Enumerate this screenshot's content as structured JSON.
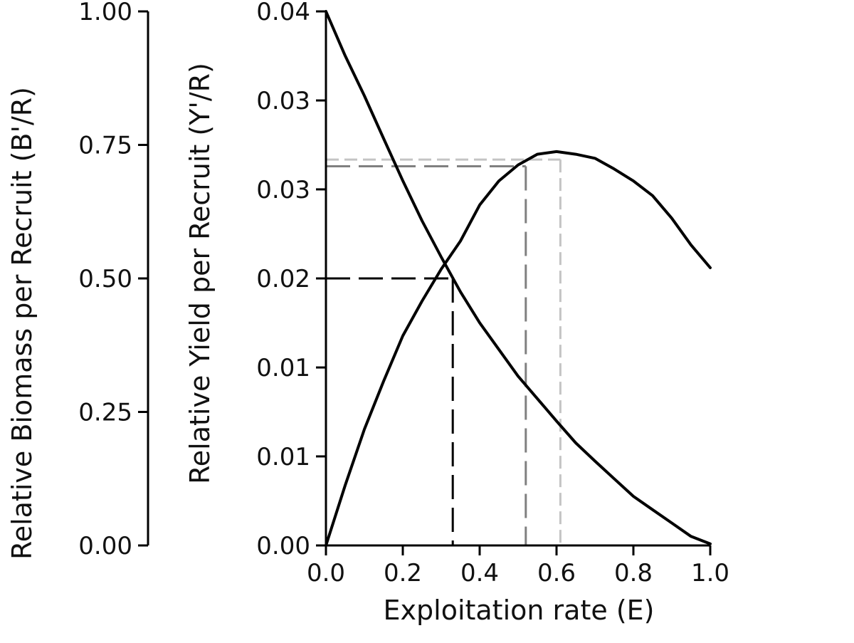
{
  "chart_data": {
    "type": "line",
    "xlabel": "Exploitation rate (E)",
    "ylabel_left": "Relative Biomass per Recruit (B'/R)",
    "ylabel_right": "Relative Yield per Recruit (Y'/R)",
    "x_ticks": [
      "0.0",
      "0.2",
      "0.4",
      "0.6",
      "0.8",
      "1.0"
    ],
    "x_tick_values": [
      0,
      0.2,
      0.4,
      0.6,
      0.8,
      1.0
    ],
    "left_ticks": [
      "0.00",
      "0.25",
      "0.50",
      "0.75",
      "1.00"
    ],
    "left_tick_values": [
      0,
      0.25,
      0.5,
      0.75,
      1.0
    ],
    "right_ticks": [
      "0.00",
      "0.01",
      "0.01",
      "0.02",
      "0.03",
      "0.03",
      "0.04"
    ],
    "right_tick_values": [
      0,
      0.00667,
      0.01333,
      0.02,
      0.02667,
      0.03333,
      0.04
    ],
    "xlim": [
      0,
      1
    ],
    "ylim_left": [
      0,
      1
    ],
    "ylim_right": [
      0,
      0.04
    ],
    "series": [
      {
        "axis": "left",
        "x": [
          0,
          0.05,
          0.1,
          0.15,
          0.2,
          0.25,
          0.3,
          0.35,
          0.4,
          0.45,
          0.5,
          0.55,
          0.6,
          0.65,
          0.7,
          0.75,
          0.8,
          0.85,
          0.9,
          0.95,
          1.0
        ],
        "y": [
          1.0,
          0.917,
          0.842,
          0.762,
          0.683,
          0.608,
          0.54,
          0.475,
          0.417,
          0.367,
          0.317,
          0.275,
          0.233,
          0.192,
          0.158,
          0.125,
          0.092,
          0.067,
          0.042,
          0.017,
          0.003
        ]
      },
      {
        "axis": "right",
        "x": [
          0,
          0.05,
          0.1,
          0.15,
          0.2,
          0.25,
          0.3,
          0.35,
          0.4,
          0.45,
          0.5,
          0.55,
          0.6,
          0.65,
          0.7,
          0.75,
          0.8,
          0.85,
          0.9,
          0.95,
          1.0
        ],
        "y": [
          0.0,
          0.0045,
          0.0087,
          0.0123,
          0.0157,
          0.0183,
          0.0207,
          0.0228,
          0.0255,
          0.0273,
          0.0285,
          0.0293,
          0.0295,
          0.0293,
          0.029,
          0.0282,
          0.0273,
          0.0262,
          0.0245,
          0.0225,
          0.0208
        ]
      }
    ],
    "reference_lines": [
      {
        "x": 0.33,
        "y_right": 0.02,
        "color": "#000000",
        "dash": "long"
      },
      {
        "x": 0.52,
        "y_right": 0.0284,
        "color": "#808080",
        "dash": "long"
      },
      {
        "x": 0.61,
        "y_right": 0.0289,
        "color": "#c4c4c4",
        "dash": "short"
      }
    ],
    "colors": {
      "curve": "#000000",
      "axis": "#000000"
    }
  }
}
